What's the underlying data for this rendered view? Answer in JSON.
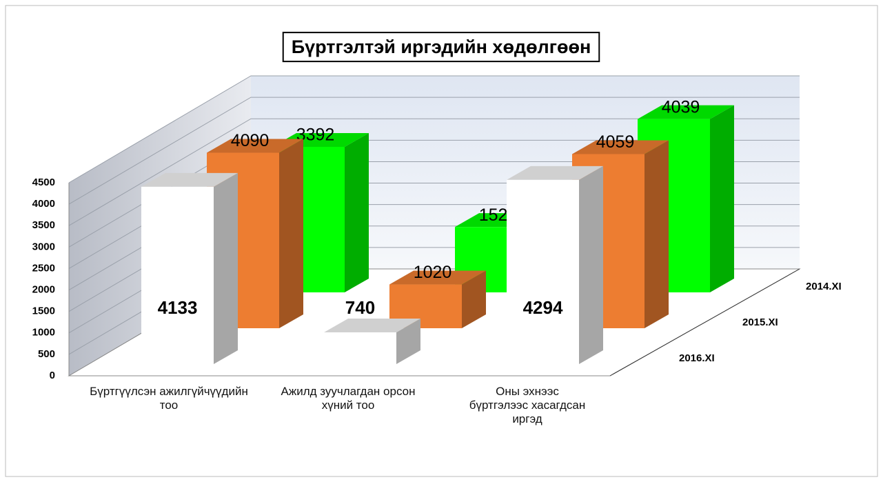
{
  "chart_data": {
    "type": "bar3d",
    "title": "Бүртгэлтэй иргэдийн хөдөлгөөн",
    "categories": [
      "Бүртгүүлсэн ажилгүйчүүдийн тоо",
      "Ажилд зуучлагдан орсон хүний тоо",
      "Оны эхнээс бүртгэлээс хасагдсан иргэд"
    ],
    "series": [
      {
        "name": "2016.XI",
        "color": "#ffffff",
        "values": [
          4133,
          740,
          4294
        ]
      },
      {
        "name": "2015.XI",
        "color": "#ed7d31",
        "values": [
          4090,
          1020,
          4059
        ]
      },
      {
        "name": "2014.XI",
        "color": "#00ff00",
        "values": [
          3392,
          1524,
          4039
        ]
      }
    ],
    "ylim": [
      0,
      4500
    ],
    "yticks": [
      0,
      500,
      1000,
      1500,
      2000,
      2500,
      3000,
      3500,
      4000,
      4500
    ],
    "grid": true
  }
}
